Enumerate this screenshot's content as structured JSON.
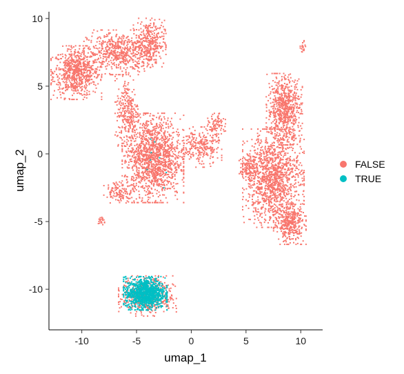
{
  "chart_data": {
    "type": "scatter",
    "title": "",
    "xlabel": "umap_1",
    "ylabel": "umap_2",
    "xlim": [
      -13,
      12
    ],
    "ylim": [
      -13,
      10.5
    ],
    "x_ticks": [
      -10,
      -5,
      0,
      5,
      10
    ],
    "x_tick_labels": [
      "-10",
      "-5",
      "0",
      "5",
      "10"
    ],
    "y_ticks": [
      -10,
      -5,
      0,
      5,
      10
    ],
    "y_tick_labels": [
      "-10",
      "-5",
      "0",
      "5",
      "10"
    ],
    "grid": false,
    "legend_position": "right",
    "series": [
      {
        "name": "FALSE",
        "color": "#F8766D",
        "clusters": [
          {
            "label": "top-left lobe",
            "center": [
              -10.5,
              6.0
            ],
            "spread": [
              1.4,
              1.2
            ],
            "count": 700
          },
          {
            "label": "top arm",
            "center": [
              -6.5,
              7.5
            ],
            "spread": [
              2.0,
              1.0
            ],
            "count": 600
          },
          {
            "label": "top-right knob",
            "center": [
              -3.8,
              8.2
            ],
            "spread": [
              0.9,
              1.1
            ],
            "count": 300
          },
          {
            "label": "neck",
            "center": [
              -5.8,
              3.2
            ],
            "spread": [
              0.7,
              1.6
            ],
            "count": 260
          },
          {
            "label": "central mass",
            "center": [
              -3.5,
              -0.3
            ],
            "spread": [
              1.7,
              2.0
            ],
            "count": 1400
          },
          {
            "label": "right arm",
            "center": [
              0.8,
              0.5
            ],
            "spread": [
              1.2,
              0.9
            ],
            "count": 260
          },
          {
            "label": "right arm tip",
            "center": [
              2.3,
              2.0
            ],
            "spread": [
              0.5,
              0.6
            ],
            "count": 90
          },
          {
            "label": "left tail",
            "center": [
              -6.5,
              -2.8
            ],
            "spread": [
              0.9,
              0.5
            ],
            "count": 120
          },
          {
            "label": "left tail tip",
            "center": [
              -8.2,
              -4.9
            ],
            "spread": [
              0.25,
              0.2
            ],
            "count": 20
          },
          {
            "label": "right cluster top",
            "center": [
              8.5,
              3.3
            ],
            "spread": [
              1.0,
              1.6
            ],
            "count": 700
          },
          {
            "label": "right cluster middle",
            "center": [
              7.5,
              -1.8
            ],
            "spread": [
              1.7,
              2.2
            ],
            "count": 1300
          },
          {
            "label": "right cluster bottom",
            "center": [
              9.0,
              -5.2
            ],
            "spread": [
              0.9,
              0.9
            ],
            "count": 350
          },
          {
            "label": "right cluster left edge",
            "center": [
              5.2,
              -1.0
            ],
            "spread": [
              0.5,
              0.6
            ],
            "count": 110
          },
          {
            "label": "far-right island",
            "center": [
              10.2,
              7.9
            ],
            "spread": [
              0.15,
              0.3
            ],
            "count": 18
          },
          {
            "label": "bottom cluster rim",
            "center": [
              -4.0,
              -10.5
            ],
            "spread": [
              1.6,
              0.9
            ],
            "count": 520
          }
        ]
      },
      {
        "name": "TRUE",
        "color": "#00BFC4",
        "clusters": [
          {
            "label": "bottom cluster core",
            "center": [
              -4.2,
              -10.3
            ],
            "spread": [
              1.2,
              0.75
            ],
            "count": 1100
          },
          {
            "label": "scattered",
            "center": [
              -3.5,
              -0.5
            ],
            "spread": [
              1.5,
              1.8
            ],
            "count": 8
          }
        ]
      }
    ]
  }
}
